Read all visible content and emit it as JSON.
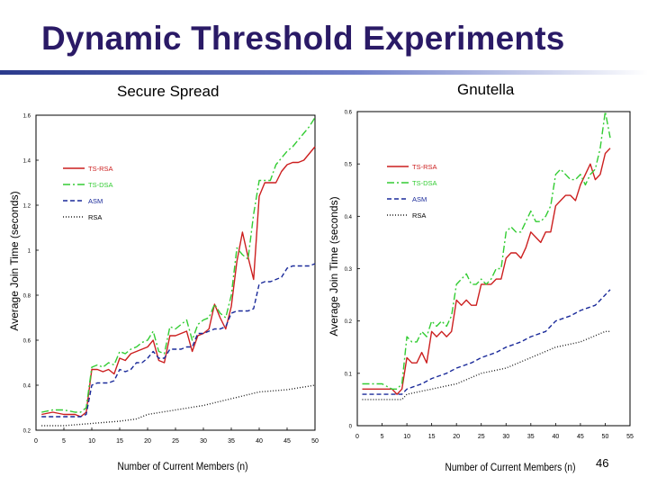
{
  "slide": {
    "title": "Dynamic Threshold Experiments",
    "page_number": "46"
  },
  "colors": {
    "title": "#2a1a66",
    "ts_rsa": "#cc1f1f",
    "ts_dsa": "#33cc33",
    "asm": "#1a2a9a",
    "rsa": "#222222"
  },
  "chart_data": [
    {
      "type": "line",
      "panel_label": "Secure Spread",
      "title": "",
      "xlabel": "Number of Current Members (n)",
      "ylabel": "Average Join Time (seconds)",
      "xlim": [
        0,
        50
      ],
      "ylim": [
        0.2,
        1.6
      ],
      "x_ticks": [
        0,
        5,
        10,
        15,
        20,
        25,
        30,
        35,
        40,
        45,
        50
      ],
      "y_ticks": [
        0.2,
        0.4,
        0.6,
        0.8,
        1,
        1.2,
        1.4,
        1.6
      ],
      "y_tick_labels": [
        "0.2",
        "0.4",
        "0.6",
        "0.8",
        "1",
        "1.2",
        "1.4",
        "1.6"
      ],
      "legend_position": "top-left",
      "series": [
        {
          "name": "TS-RSA",
          "color": "#cc1f1f",
          "dash": "solid",
          "x": [
            1,
            3,
            5,
            6,
            7,
            8,
            9,
            10,
            11,
            12,
            13,
            14,
            15,
            16,
            17,
            18,
            19,
            20,
            21,
            22,
            23,
            24,
            25,
            26,
            27,
            28,
            29,
            30,
            31,
            32,
            33,
            34,
            35,
            36,
            37,
            38,
            39,
            40,
            41,
            42,
            43,
            44,
            45,
            46,
            47,
            48,
            49,
            50
          ],
          "y": [
            0.27,
            0.28,
            0.27,
            0.27,
            0.27,
            0.26,
            0.28,
            0.47,
            0.47,
            0.46,
            0.47,
            0.45,
            0.52,
            0.51,
            0.54,
            0.55,
            0.56,
            0.57,
            0.6,
            0.51,
            0.5,
            0.62,
            0.62,
            0.63,
            0.64,
            0.55,
            0.62,
            0.63,
            0.65,
            0.76,
            0.7,
            0.65,
            0.75,
            0.95,
            1.08,
            0.97,
            0.87,
            1.24,
            1.3,
            1.3,
            1.3,
            1.35,
            1.38,
            1.39,
            1.39,
            1.4,
            1.43,
            1.46
          ]
        },
        {
          "name": "TS-DSA",
          "color": "#33cc33",
          "dash": "8,3,2,3",
          "x": [
            1,
            3,
            5,
            7,
            8,
            9,
            10,
            11,
            12,
            13,
            14,
            15,
            16,
            17,
            18,
            19,
            20,
            21,
            22,
            23,
            24,
            25,
            26,
            27,
            28,
            29,
            30,
            31,
            32,
            33,
            34,
            35,
            36,
            37,
            38,
            39,
            40,
            41,
            42,
            43,
            44,
            45,
            46,
            47,
            48,
            49,
            50
          ],
          "y": [
            0.28,
            0.29,
            0.29,
            0.28,
            0.28,
            0.3,
            0.48,
            0.49,
            0.48,
            0.5,
            0.49,
            0.55,
            0.54,
            0.56,
            0.57,
            0.59,
            0.6,
            0.64,
            0.55,
            0.54,
            0.66,
            0.65,
            0.67,
            0.69,
            0.6,
            0.67,
            0.69,
            0.7,
            0.76,
            0.72,
            0.7,
            0.8,
            1.01,
            0.98,
            0.96,
            1.16,
            1.31,
            1.31,
            1.31,
            1.38,
            1.41,
            1.44,
            1.46,
            1.49,
            1.52,
            1.55,
            1.59
          ]
        },
        {
          "name": "ASM",
          "color": "#1a2a9a",
          "dash": "5,3",
          "x": [
            1,
            3,
            5,
            7,
            8,
            9,
            10,
            11,
            12,
            13,
            14,
            15,
            16,
            17,
            18,
            19,
            20,
            21,
            22,
            23,
            24,
            25,
            26,
            27,
            28,
            29,
            30,
            31,
            32,
            33,
            34,
            35,
            36,
            37,
            38,
            39,
            40,
            41,
            42,
            43,
            44,
            45,
            46,
            47,
            48,
            49,
            50
          ],
          "y": [
            0.26,
            0.26,
            0.26,
            0.26,
            0.26,
            0.27,
            0.4,
            0.41,
            0.41,
            0.41,
            0.42,
            0.47,
            0.46,
            0.47,
            0.5,
            0.5,
            0.52,
            0.55,
            0.52,
            0.52,
            0.56,
            0.56,
            0.56,
            0.57,
            0.57,
            0.63,
            0.63,
            0.64,
            0.65,
            0.65,
            0.66,
            0.72,
            0.73,
            0.73,
            0.73,
            0.74,
            0.85,
            0.86,
            0.86,
            0.87,
            0.88,
            0.92,
            0.93,
            0.93,
            0.93,
            0.93,
            0.94
          ]
        },
        {
          "name": "RSA",
          "color": "#222222",
          "dash": "1,2",
          "x": [
            1,
            5,
            10,
            15,
            18,
            20,
            25,
            30,
            35,
            40,
            45,
            50
          ],
          "y": [
            0.22,
            0.22,
            0.23,
            0.24,
            0.25,
            0.27,
            0.29,
            0.31,
            0.34,
            0.37,
            0.38,
            0.4
          ]
        }
      ]
    },
    {
      "type": "line",
      "panel_label": "Gnutella",
      "title": "",
      "xlabel": "Number of Current Members (n)",
      "ylabel": "Average Join Time (seconds)",
      "xlim": [
        0,
        55
      ],
      "ylim": [
        0,
        0.6
      ],
      "x_ticks": [
        0,
        5,
        10,
        15,
        20,
        25,
        30,
        35,
        40,
        45,
        50,
        55
      ],
      "y_ticks": [
        0,
        0.1,
        0.2,
        0.3,
        0.4,
        0.5,
        0.6
      ],
      "y_tick_labels": [
        "0",
        "0.1",
        "0.2",
        "0.3",
        "0.4",
        "0.5",
        "0.6"
      ],
      "legend_position": "top-left",
      "series": [
        {
          "name": "TS-RSA",
          "color": "#cc1f1f",
          "dash": "solid",
          "x": [
            1,
            3,
            5,
            7,
            8,
            9,
            10,
            11,
            12,
            13,
            14,
            15,
            16,
            17,
            18,
            19,
            20,
            21,
            22,
            23,
            24,
            25,
            26,
            27,
            28,
            29,
            30,
            31,
            32,
            33,
            34,
            35,
            36,
            37,
            38,
            39,
            40,
            41,
            42,
            43,
            44,
            45,
            46,
            47,
            48,
            49,
            50,
            51
          ],
          "y": [
            0.07,
            0.07,
            0.07,
            0.07,
            0.06,
            0.07,
            0.13,
            0.12,
            0.12,
            0.14,
            0.12,
            0.18,
            0.17,
            0.18,
            0.17,
            0.18,
            0.24,
            0.23,
            0.24,
            0.23,
            0.23,
            0.27,
            0.27,
            0.27,
            0.28,
            0.28,
            0.32,
            0.33,
            0.33,
            0.32,
            0.34,
            0.37,
            0.36,
            0.35,
            0.37,
            0.37,
            0.42,
            0.43,
            0.44,
            0.44,
            0.43,
            0.46,
            0.48,
            0.5,
            0.47,
            0.48,
            0.52,
            0.53
          ]
        },
        {
          "name": "TS-DSA",
          "color": "#33cc33",
          "dash": "8,3,2,3",
          "x": [
            1,
            3,
            5,
            7,
            8,
            9,
            10,
            11,
            12,
            13,
            14,
            15,
            16,
            17,
            18,
            19,
            20,
            21,
            22,
            23,
            24,
            25,
            26,
            27,
            28,
            29,
            30,
            31,
            32,
            33,
            34,
            35,
            36,
            37,
            38,
            39,
            40,
            41,
            42,
            43,
            44,
            45,
            46,
            47,
            48,
            49,
            50,
            51
          ],
          "y": [
            0.08,
            0.08,
            0.08,
            0.07,
            0.07,
            0.08,
            0.17,
            0.16,
            0.16,
            0.18,
            0.17,
            0.2,
            0.19,
            0.2,
            0.19,
            0.21,
            0.27,
            0.28,
            0.29,
            0.27,
            0.27,
            0.28,
            0.27,
            0.28,
            0.3,
            0.3,
            0.37,
            0.38,
            0.37,
            0.37,
            0.39,
            0.41,
            0.39,
            0.39,
            0.4,
            0.42,
            0.48,
            0.49,
            0.48,
            0.47,
            0.47,
            0.48,
            0.46,
            0.48,
            0.49,
            0.53,
            0.6,
            0.55
          ]
        },
        {
          "name": "ASM",
          "color": "#1a2a9a",
          "dash": "5,3",
          "x": [
            1,
            5,
            9,
            10,
            13,
            15,
            18,
            20,
            23,
            25,
            28,
            30,
            33,
            35,
            38,
            40,
            43,
            45,
            48,
            50,
            51
          ],
          "y": [
            0.06,
            0.06,
            0.06,
            0.07,
            0.08,
            0.09,
            0.1,
            0.11,
            0.12,
            0.13,
            0.14,
            0.15,
            0.16,
            0.17,
            0.18,
            0.2,
            0.21,
            0.22,
            0.23,
            0.25,
            0.26
          ]
        },
        {
          "name": "RSA",
          "color": "#222222",
          "dash": "1,2",
          "x": [
            1,
            5,
            9,
            10,
            15,
            20,
            25,
            30,
            35,
            40,
            45,
            50,
            51
          ],
          "y": [
            0.05,
            0.05,
            0.05,
            0.06,
            0.07,
            0.08,
            0.1,
            0.11,
            0.13,
            0.15,
            0.16,
            0.18,
            0.18
          ]
        }
      ]
    }
  ]
}
